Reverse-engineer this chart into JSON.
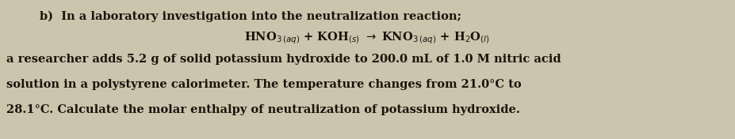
{
  "background_color": "#cdc4ae",
  "text_color": "#1a1208",
  "line1": "b)  In a laboratory investigation into the neutralization reaction;",
  "eq_text": "HNO$_{3\\,(aq)}$ + KOH$_{(s)}$ $\\rightarrow$ KNO$_{3\\,(aq)}$ + H$_{2}$O$_{(l)}$",
  "line3": "a researcher adds 5.2 g of solid potassium hydroxide to 200.0 mL of 1.0 M nitric acid",
  "line4": "solution in a polystyrene calorimeter. The temperature changes from 21.0°C to",
  "line5": "28.1°C. Calculate the molar enthalpy of neutralization of potassium hydroxide.",
  "fontsize": 10.5,
  "font_family": "DejaVu Serif"
}
